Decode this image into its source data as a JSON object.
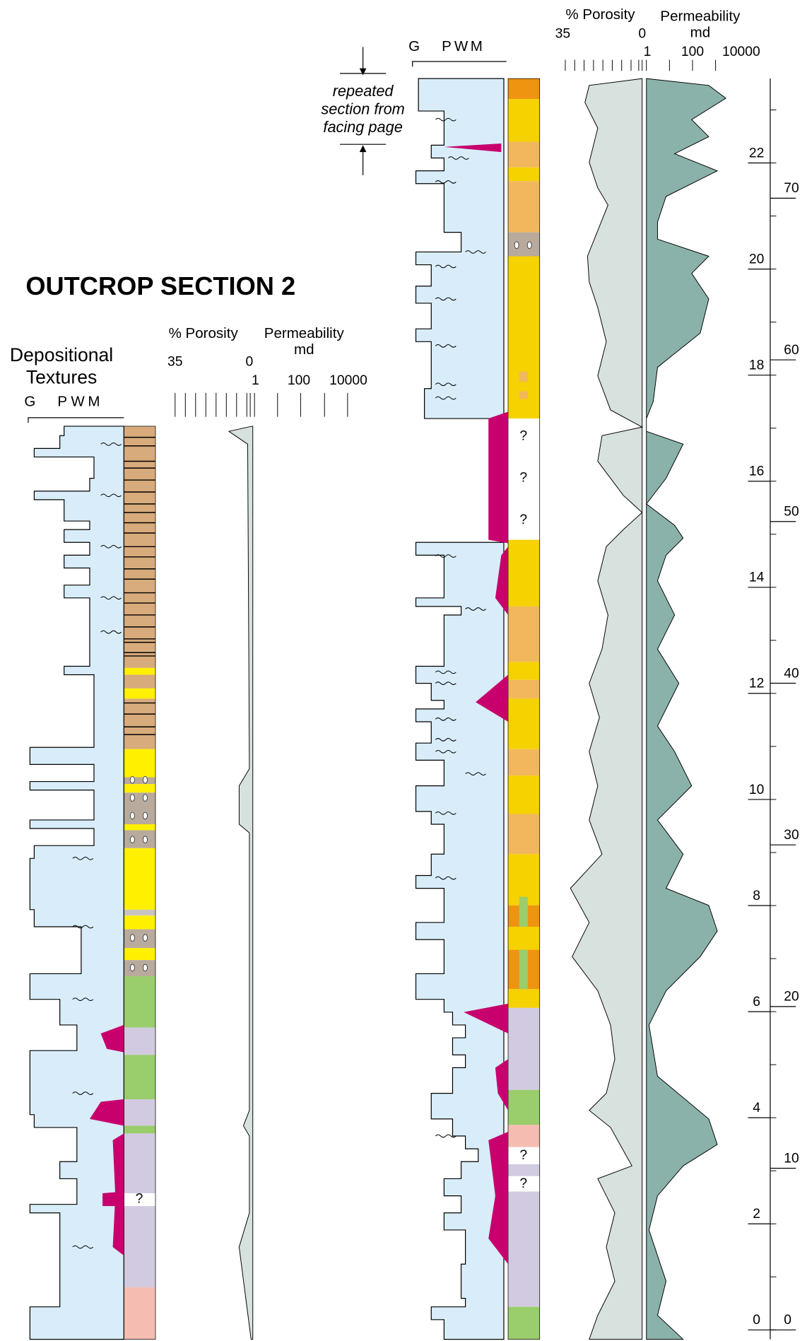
{
  "title": "OUTCROP SECTION 2",
  "annotation": [
    "repeated",
    "section from",
    "facing page"
  ],
  "left_section": {
    "texture_header": [
      "Depositional",
      "Textures"
    ],
    "texture_scale": [
      "G",
      "P",
      "W",
      "M"
    ],
    "porosity_header": "% Porosity",
    "porosity_scale": [
      "35",
      "0"
    ],
    "permeability_header": "Permeability",
    "permeability_unit": "md",
    "permeability_scale": [
      "1",
      "100",
      "10000"
    ],
    "unknown_markers": [
      "?"
    ]
  },
  "right_section": {
    "texture_scale": [
      "G",
      "P",
      "W",
      "M"
    ],
    "porosity_header": "% Porosity",
    "porosity_scale": [
      "35",
      "0"
    ],
    "permeability_header": "Permeability",
    "permeability_unit": "md",
    "permeability_scale": [
      "1",
      "100",
      "10000"
    ],
    "unknown_markers": [
      "?",
      "?",
      "?",
      "?",
      "?"
    ]
  },
  "depth_scale": {
    "meters": [
      0,
      2,
      4,
      6,
      8,
      10,
      12,
      14,
      16,
      18,
      20,
      22
    ],
    "feet": [
      0,
      10,
      20,
      30,
      40,
      50,
      60,
      70
    ]
  }
}
